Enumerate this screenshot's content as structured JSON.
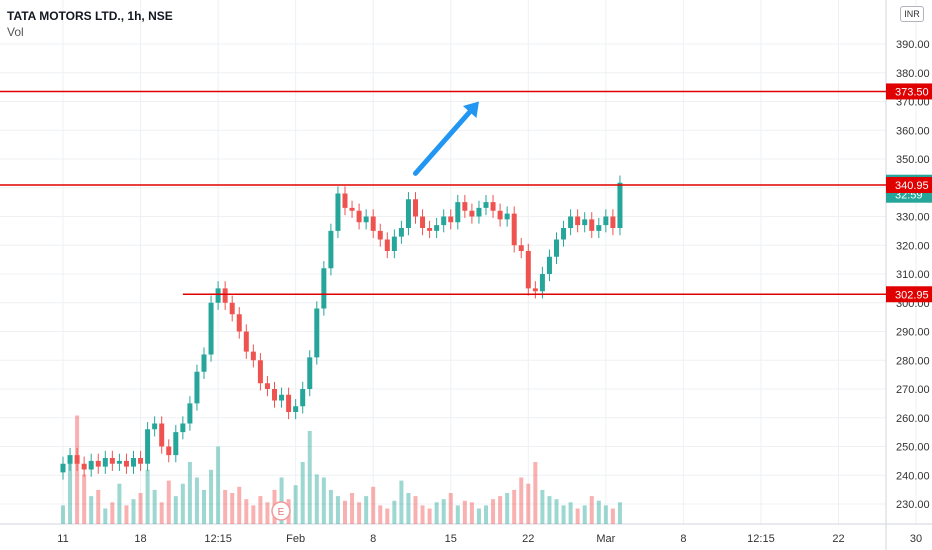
{
  "header": {
    "title": "TATA MOTORS LTD., 1h, NSE",
    "volume_label": "Vol"
  },
  "currency_badge": "INR",
  "event_marker": "E",
  "colors": {
    "up": "#26a69a",
    "down": "#ef5350",
    "level_line": "#e00000",
    "arrow": "#2196f3",
    "current_price": "#26a69a",
    "grid": "#eef0f3"
  },
  "chart_data": {
    "type": "candlestick",
    "title": "TATA MOTORS LTD., 1h, NSE",
    "yticks": [
      230,
      240,
      250,
      260,
      270,
      280,
      290,
      300,
      310,
      320,
      330,
      340,
      350,
      360,
      370,
      380,
      390
    ],
    "xticks": [
      {
        "label": "11",
        "i": 0
      },
      {
        "label": "18",
        "i": 11
      },
      {
        "label": "12:15",
        "i": 22
      },
      {
        "label": "Feb",
        "i": 33
      },
      {
        "label": "8",
        "i": 44
      },
      {
        "label": "15",
        "i": 55
      },
      {
        "label": "22",
        "i": 66
      },
      {
        "label": "Mar",
        "i": 77
      },
      {
        "label": "8",
        "i": 88
      },
      {
        "label": "12:15",
        "i": 99
      },
      {
        "label": "22",
        "i": 110
      },
      {
        "label": "30",
        "i": 121
      }
    ],
    "price_tags": [
      {
        "value": 373.5,
        "label": "373.50",
        "kind": "level"
      },
      {
        "value": 341.75,
        "label": "341.75",
        "sub": "32:59",
        "kind": "current"
      },
      {
        "value": 340.95,
        "label": "340.95",
        "kind": "level"
      },
      {
        "value": 302.95,
        "label": "302.95",
        "kind": "level"
      }
    ],
    "levels": [
      {
        "value": 373.5,
        "from_i": 0
      },
      {
        "value": 340.95,
        "from_i": 0
      },
      {
        "value": 302.95,
        "from_i": 17
      }
    ],
    "close": [
      244,
      247,
      244,
      242,
      245,
      243,
      246,
      244,
      245,
      243,
      246,
      244,
      256,
      258,
      250,
      247,
      255,
      258,
      265,
      276,
      282,
      300,
      305,
      300,
      296,
      290,
      283,
      280,
      272,
      270,
      266,
      268,
      262,
      264,
      270,
      281,
      298,
      312,
      325,
      338,
      333,
      332,
      328,
      330,
      325,
      322,
      318,
      323,
      326,
      336,
      330,
      326,
      325,
      327,
      330,
      328,
      335,
      332,
      330,
      333,
      335,
      332,
      329,
      331,
      320,
      318,
      305,
      304,
      310,
      316,
      322,
      326,
      330,
      327,
      329,
      325,
      327,
      330,
      326,
      341.75
    ],
    "volume": [
      12,
      40,
      70,
      32,
      18,
      22,
      10,
      14,
      26,
      12,
      16,
      20,
      35,
      22,
      14,
      28,
      18,
      26,
      40,
      30,
      22,
      35,
      50,
      22,
      20,
      24,
      16,
      12,
      18,
      14,
      22,
      30,
      16,
      25,
      40,
      60,
      32,
      30,
      22,
      18,
      15,
      20,
      14,
      18,
      24,
      12,
      10,
      15,
      28,
      20,
      18,
      12,
      10,
      14,
      16,
      20,
      12,
      15,
      14,
      10,
      12,
      16,
      18,
      20,
      22,
      30,
      26,
      40,
      22,
      18,
      16,
      12,
      14,
      10,
      12,
      18,
      15,
      12,
      10,
      14
    ],
    "arrow": {
      "from": [
        50,
        345
      ],
      "to": [
        59,
        370
      ]
    }
  }
}
